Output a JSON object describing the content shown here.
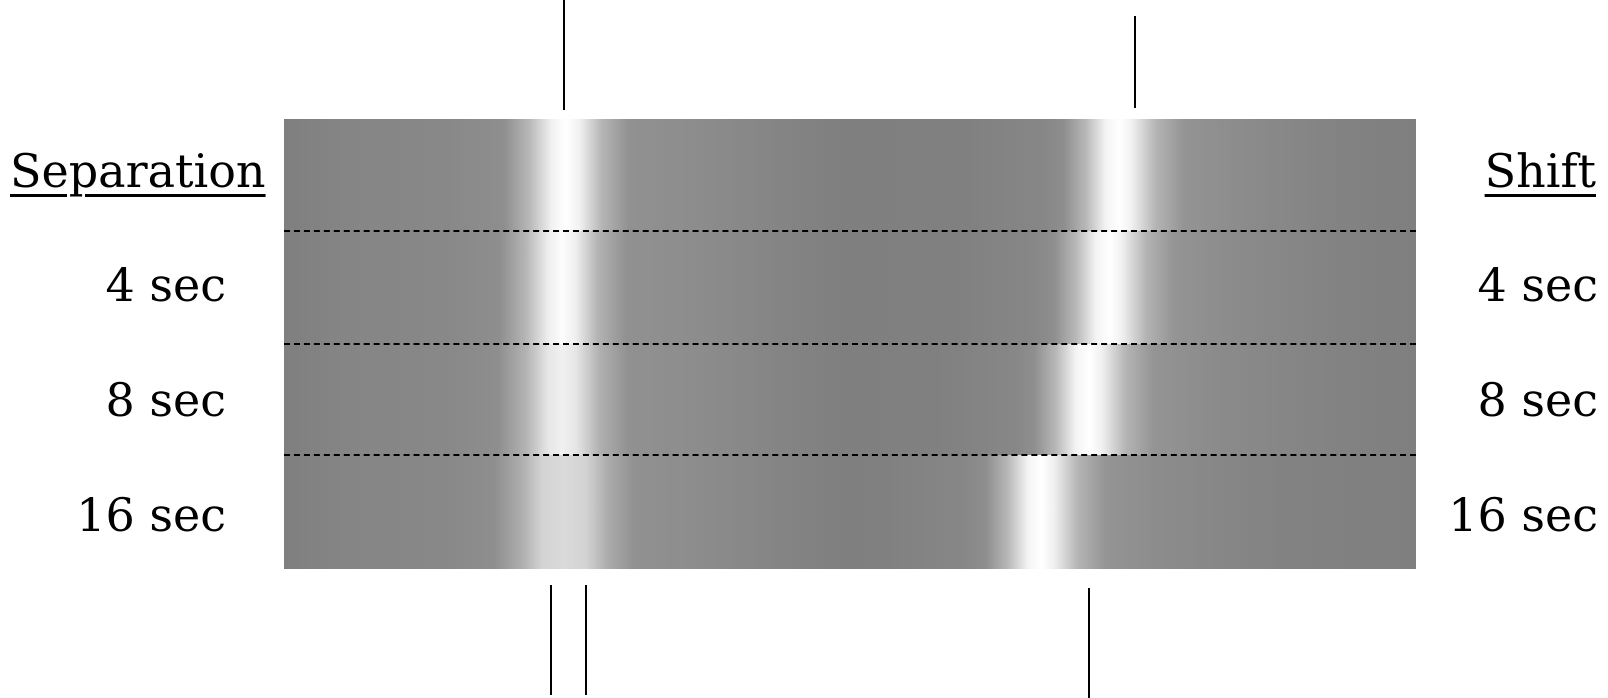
{
  "headers": {
    "left": "Separation",
    "right": "Shift"
  },
  "rows": [
    {
      "separation": "4 sec",
      "shift": "4 sec"
    },
    {
      "separation": "8 sec",
      "shift": "8 sec"
    },
    {
      "separation": "16 sec",
      "shift": "16 sec"
    }
  ],
  "colors": {
    "stimulus_base": "#7f7f7f",
    "highlight": "#ffffff",
    "markers": "#000000"
  }
}
